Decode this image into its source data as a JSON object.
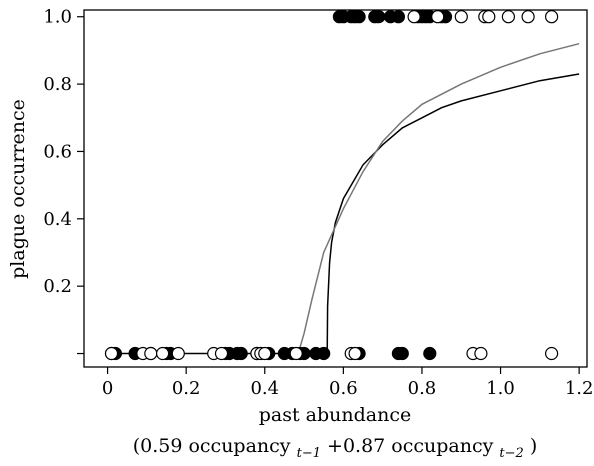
{
  "chart_data": {
    "type": "scatter",
    "xlabel": "past abundance",
    "xlabel_formula": {
      "open": "(0.59 occupancy",
      "sub1": "t−1",
      "mid": "+0.87 occupancy",
      "sub2": "t−2",
      "close": ")"
    },
    "ylabel": "plague occurrence",
    "xlim": [
      -0.06,
      1.22
    ],
    "ylim": [
      -0.04,
      1.02
    ],
    "x_ticks": [
      0,
      0.2,
      0.4,
      0.6,
      0.8,
      1.0,
      1.2
    ],
    "x_tick_labels": [
      "0",
      "0.2",
      "0.4",
      "0.6",
      "0.8",
      "1.0",
      "1.2"
    ],
    "y_ticks": [
      0.2,
      0.4,
      0.6,
      0.8,
      1.0
    ],
    "y_tick_labels": [
      "0.2",
      "0.4",
      "0.6",
      "0.8",
      "1.0"
    ],
    "series": [
      {
        "marker": "filled-circle",
        "points": [
          [
            0.01,
            0
          ],
          [
            0.02,
            0
          ],
          [
            0.07,
            0
          ],
          [
            0.11,
            0
          ],
          [
            0.15,
            0
          ],
          [
            0.16,
            0
          ],
          [
            0.3,
            0
          ],
          [
            0.31,
            0
          ],
          [
            0.33,
            0
          ],
          [
            0.34,
            0
          ],
          [
            0.38,
            0
          ],
          [
            0.41,
            0
          ],
          [
            0.45,
            0
          ],
          [
            0.47,
            0
          ],
          [
            0.49,
            0
          ],
          [
            0.5,
            0
          ],
          [
            0.53,
            0
          ],
          [
            0.55,
            0
          ],
          [
            0.64,
            0
          ],
          [
            0.74,
            0
          ],
          [
            0.75,
            0
          ],
          [
            0.82,
            0
          ],
          [
            0.59,
            1
          ],
          [
            0.6,
            1
          ],
          [
            0.62,
            1
          ],
          [
            0.63,
            1
          ],
          [
            0.64,
            1
          ],
          [
            0.68,
            1
          ],
          [
            0.69,
            1
          ],
          [
            0.72,
            1
          ],
          [
            0.74,
            1
          ],
          [
            0.79,
            1
          ],
          [
            0.8,
            1
          ],
          [
            0.81,
            1
          ],
          [
            0.82,
            1
          ],
          [
            0.85,
            1
          ],
          [
            0.86,
            1
          ]
        ]
      },
      {
        "marker": "open-circle",
        "points": [
          [
            0.01,
            0
          ],
          [
            0.09,
            0
          ],
          [
            0.11,
            0
          ],
          [
            0.14,
            0
          ],
          [
            0.18,
            0
          ],
          [
            0.27,
            0
          ],
          [
            0.29,
            0
          ],
          [
            0.38,
            0
          ],
          [
            0.39,
            0
          ],
          [
            0.4,
            0
          ],
          [
            0.48,
            0
          ],
          [
            0.62,
            0
          ],
          [
            0.63,
            0
          ],
          [
            0.93,
            0
          ],
          [
            0.95,
            0
          ],
          [
            1.13,
            0
          ],
          [
            0.78,
            1
          ],
          [
            0.84,
            1
          ],
          [
            0.9,
            1
          ],
          [
            0.96,
            1
          ],
          [
            0.97,
            1
          ],
          [
            1.02,
            1
          ],
          [
            1.07,
            1
          ],
          [
            1.13,
            1
          ]
        ]
      }
    ],
    "lines": [
      {
        "color": "#000000",
        "points": [
          [
            0,
            0
          ],
          [
            0.559,
            0
          ],
          [
            0.56,
            0.14
          ],
          [
            0.565,
            0.27
          ],
          [
            0.57,
            0.33
          ],
          [
            0.58,
            0.39
          ],
          [
            0.6,
            0.46
          ],
          [
            0.65,
            0.56
          ],
          [
            0.7,
            0.62
          ],
          [
            0.75,
            0.67
          ],
          [
            0.8,
            0.7
          ],
          [
            0.85,
            0.73
          ],
          [
            0.9,
            0.75
          ],
          [
            1.0,
            0.78
          ],
          [
            1.1,
            0.81
          ],
          [
            1.2,
            0.83
          ]
        ]
      },
      {
        "color": "#777777",
        "points": [
          [
            0.485,
            0
          ],
          [
            0.5,
            0.06
          ],
          [
            0.52,
            0.16
          ],
          [
            0.55,
            0.3
          ],
          [
            0.6,
            0.43
          ],
          [
            0.65,
            0.54
          ],
          [
            0.7,
            0.63
          ],
          [
            0.75,
            0.69
          ],
          [
            0.8,
            0.74
          ],
          [
            0.9,
            0.8
          ],
          [
            1.0,
            0.85
          ],
          [
            1.1,
            0.89
          ],
          [
            1.2,
            0.92
          ]
        ]
      }
    ],
    "grid": false
  }
}
